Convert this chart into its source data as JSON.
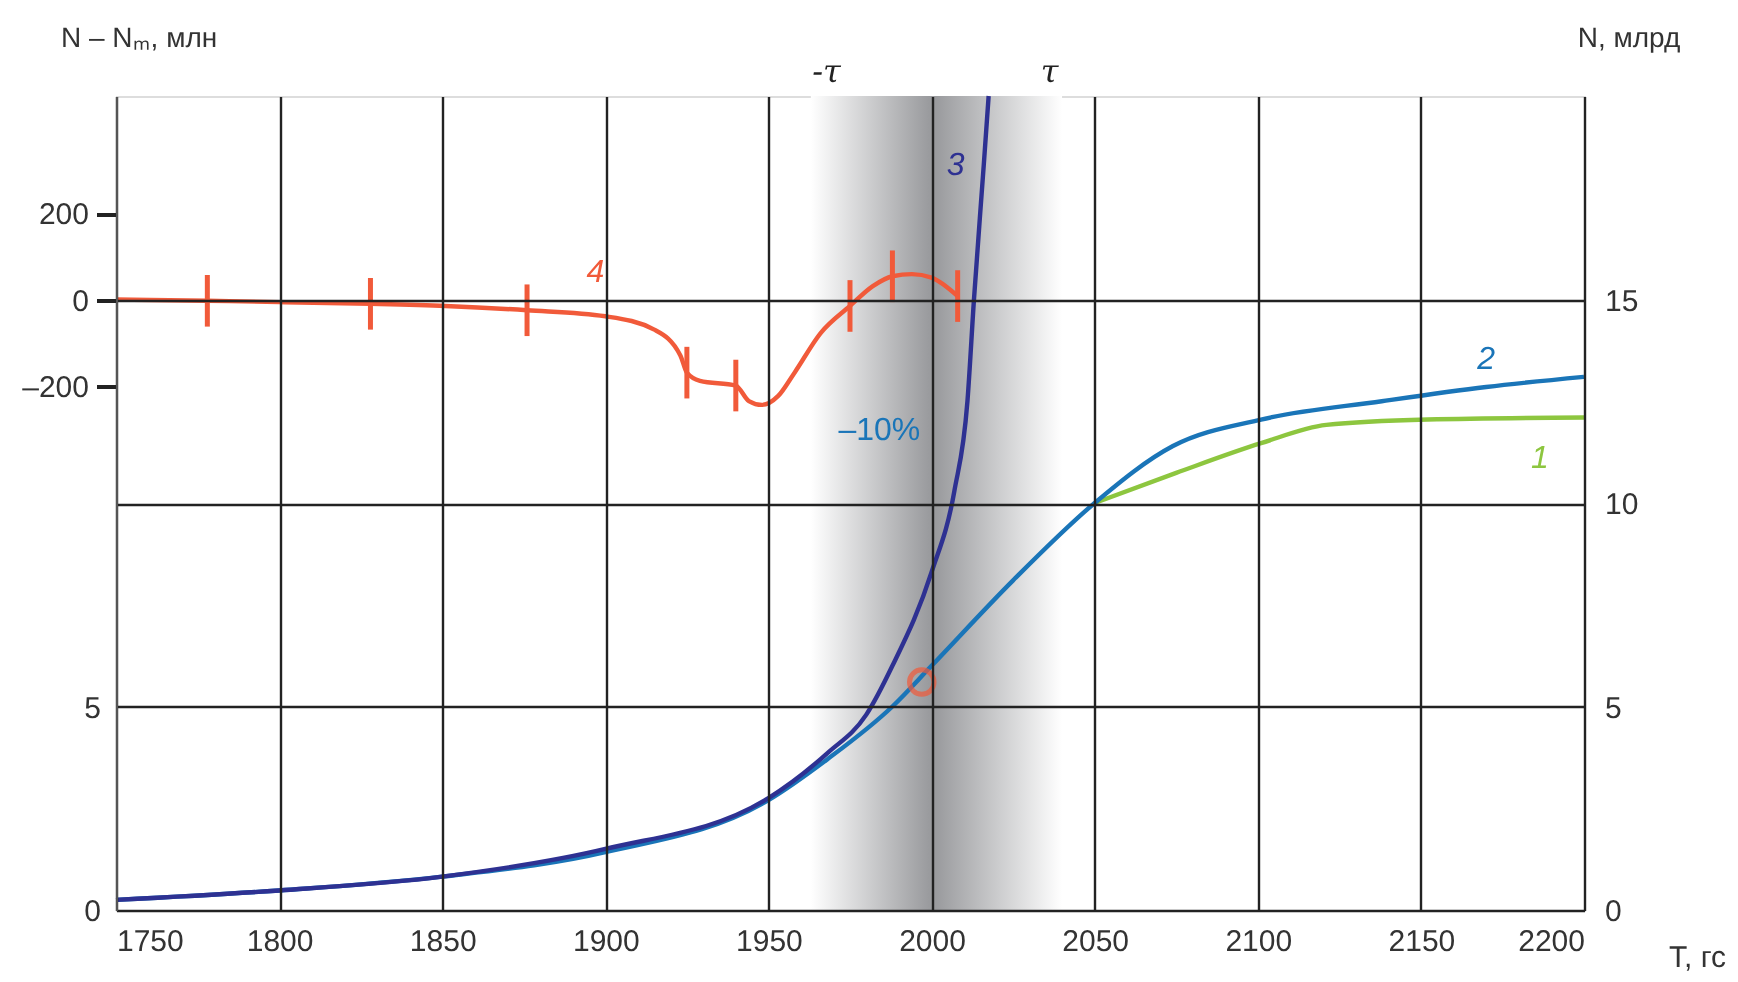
{
  "chart_data": {
    "type": "line",
    "xlabel": "T, гс",
    "y2label": "N, млрд",
    "y3label": "N – Nₘ, млн",
    "xlim": [
      1750,
      2200
    ],
    "xticks": [
      1750,
      1800,
      1850,
      1900,
      1950,
      2000,
      2050,
      2100,
      2150,
      2200
    ],
    "ylim": [
      0,
      20
    ],
    "yticks": [
      0,
      5
    ],
    "y2lim": [
      0,
      20
    ],
    "y2ticks": [
      0,
      5,
      10,
      15
    ],
    "y3lim": [
      -1419,
      473
    ],
    "y3ticks": [
      200,
      0,
      {
        "value": -200,
        "label": "–200"
      }
    ],
    "grid": true,
    "line_style": "solid",
    "bands": [
      {
        "axis": "x",
        "from": 1963,
        "to": 2040,
        "color": "#9a9b9e"
      }
    ],
    "annotations": [
      "-τ",
      "τ",
      "–10%"
    ],
    "series": [
      {
        "name": "1",
        "color": "#8dc63f",
        "x": [
          2050,
          2075,
          2101,
          2121,
          2152,
          2200
        ],
        "values": [
          10.0,
          10.74,
          11.47,
          11.92,
          12.05,
          12.1
        ]
      },
      {
        "name": "2",
        "color": "#1a75b8",
        "x": [
          1750,
          1800,
          1850,
          1900,
          1950,
          1968,
          1988,
          2000,
          2025,
          2050,
          2074,
          2101,
          2138,
          2170,
          2200
        ],
        "values": [
          0.25,
          0.48,
          0.82,
          1.42,
          2.7,
          3.7,
          5.0,
          6.0,
          8.1,
          10.0,
          11.4,
          12.05,
          12.5,
          12.85,
          13.1
        ]
      },
      {
        "name": "3",
        "color": "#2e3192",
        "x": [
          1750,
          1800,
          1850,
          1900,
          1950,
          1968,
          1980,
          1988,
          2000,
          2007,
          2011,
          2013,
          2016,
          2017.5
        ],
        "values": [
          0.25,
          0.48,
          0.82,
          1.5,
          2.75,
          3.85,
          4.8,
          6.0,
          8.3,
          10.3,
          12.5,
          15.0,
          18.3,
          20.0
        ]
      },
      {
        "name": "4",
        "color": "#f15a3a",
        "axis": "y3",
        "x": [
          1750,
          1778,
          1800,
          1828,
          1851,
          1876,
          1900,
          1915,
          1923,
          1925,
          1929,
          1940,
          1944,
          1948,
          1953,
          1958,
          1966,
          1975,
          1982,
          1988,
          1994,
          2000,
          2008
        ],
        "values": [
          0,
          -3,
          -6,
          -10,
          -15,
          -25,
          -39,
          -70,
          -130,
          -170,
          -189,
          -200,
          -236,
          -245,
          -224,
          -170,
          -78,
          -15,
          31,
          54,
          59,
          51,
          8
        ],
        "errors": [
          null,
          60,
          null,
          60,
          null,
          60,
          null,
          null,
          null,
          60,
          null,
          60,
          null,
          null,
          null,
          null,
          null,
          60,
          null,
          60,
          null,
          null,
          60
        ]
      },
      {
        "type": "scatter",
        "marker": "circle",
        "color": "#f15a3a",
        "x": [
          1997
        ],
        "values": [
          5.6
        ]
      }
    ]
  }
}
